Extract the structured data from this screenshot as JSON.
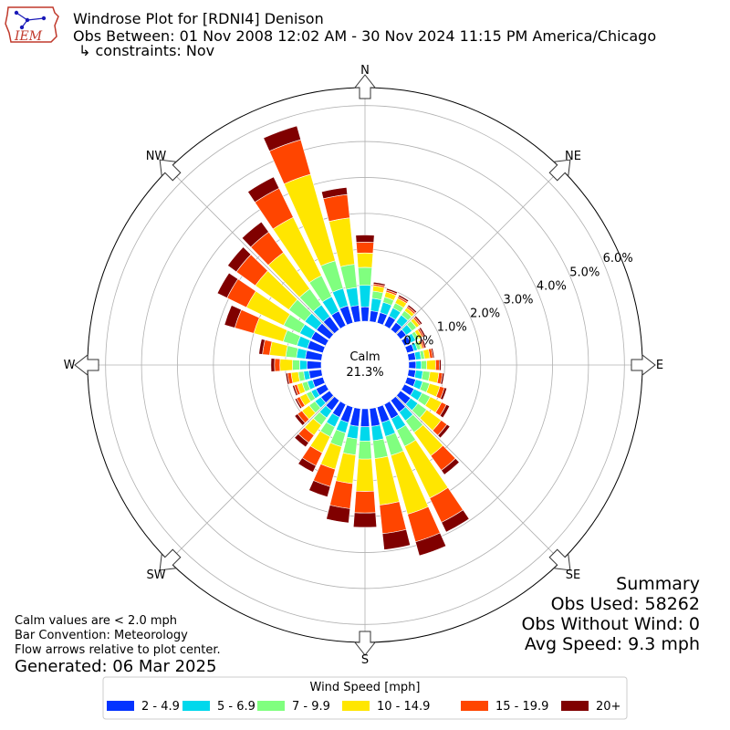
{
  "header": {
    "title": "Windrose Plot for [RDNI4] Denison",
    "period": "Obs Between: 01 Nov 2008 12:02 AM - 30 Nov 2024 11:15 PM America/Chicago",
    "constraints": "↳ constraints: Nov",
    "logo_text": "IEM"
  },
  "center": {
    "label": "Calm",
    "value": "21.3%"
  },
  "directions": {
    "n": "N",
    "ne": "NE",
    "e": "E",
    "se": "SE",
    "s": "S",
    "sw": "SW",
    "w": "W",
    "nw": "NW"
  },
  "radial_ticks": [
    "0.0%",
    "1.0%",
    "2.0%",
    "3.0%",
    "4.0%",
    "5.0%",
    "6.0%"
  ],
  "summary": {
    "heading": "Summary",
    "obs_used": "Obs Used: 58262",
    "obs_without_wind": "Obs Without Wind: 0",
    "avg_speed": "Avg Speed: 9.3 mph"
  },
  "notes": {
    "calm": "Calm values are < 2.0 mph",
    "convention": "Bar Convention: Meteorology",
    "flow": "Flow arrows relative to plot center.",
    "generated": "Generated: 06 Mar 2025"
  },
  "legend": {
    "title": "Wind Speed [mph]",
    "items": [
      {
        "label": "2 - 4.9",
        "color": "#0433ff"
      },
      {
        "label": "5 - 6.9",
        "color": "#00d8ec"
      },
      {
        "label": "7 - 9.9",
        "color": "#80ff7f"
      },
      {
        "label": "10 - 14.9",
        "color": "#ffe600"
      },
      {
        "label": "15 - 19.9",
        "color": "#ff4500"
      },
      {
        "label": "20+",
        "color": "#800000"
      }
    ]
  },
  "chart_data": {
    "type": "windrose",
    "radial_unit": "percent",
    "rmax": 6.5,
    "calm_percent": 21.3,
    "bin_count": 36,
    "bin_width_deg": 10,
    "direction_convention": "meteorology",
    "speed_bins": [
      "2 - 4.9",
      "5 - 6.9",
      "7 - 9.9",
      "10 - 14.9",
      "15 - 19.9",
      "20+"
    ],
    "directions_deg": [
      0,
      10,
      20,
      30,
      40,
      50,
      60,
      70,
      80,
      90,
      100,
      110,
      120,
      130,
      140,
      150,
      160,
      170,
      180,
      190,
      200,
      210,
      220,
      230,
      240,
      250,
      260,
      270,
      280,
      290,
      300,
      310,
      320,
      330,
      340,
      350
    ],
    "cumulative_percent": [
      [
        0.4,
        1.0,
        1.5,
        1.9,
        2.2,
        2.4
      ],
      [
        0.3,
        0.65,
        0.85,
        1.0,
        1.05,
        1.1
      ],
      [
        0.3,
        0.6,
        0.75,
        0.9,
        0.95,
        1.0
      ],
      [
        0.3,
        0.55,
        0.7,
        0.85,
        0.9,
        0.95
      ],
      [
        0.25,
        0.5,
        0.65,
        0.75,
        0.8,
        0.85
      ],
      [
        0.2,
        0.4,
        0.55,
        0.65,
        0.7,
        0.75
      ],
      [
        0.2,
        0.35,
        0.45,
        0.55,
        0.6,
        0.65
      ],
      [
        0.2,
        0.3,
        0.4,
        0.45,
        0.5,
        0.55
      ],
      [
        0.2,
        0.35,
        0.45,
        0.6,
        0.68,
        0.72
      ],
      [
        0.2,
        0.35,
        0.5,
        0.75,
        0.85,
        0.9
      ],
      [
        0.2,
        0.4,
        0.6,
        0.85,
        0.95,
        1.0
      ],
      [
        0.25,
        0.45,
        0.65,
        0.95,
        1.08,
        1.15
      ],
      [
        0.3,
        0.55,
        0.8,
        1.15,
        1.3,
        1.4
      ],
      [
        0.35,
        0.6,
        0.9,
        1.4,
        1.6,
        1.7
      ],
      [
        0.4,
        0.7,
        1.1,
        1.9,
        2.4,
        2.55
      ],
      [
        0.45,
        0.8,
        1.3,
        2.9,
        3.65,
        3.95
      ],
      [
        0.45,
        0.85,
        1.4,
        3.1,
        3.9,
        4.3
      ],
      [
        0.5,
        0.9,
        1.4,
        2.7,
        3.5,
        3.95
      ],
      [
        0.5,
        0.9,
        1.4,
        2.3,
        2.9,
        3.3
      ],
      [
        0.5,
        0.85,
        1.3,
        2.1,
        2.8,
        3.2
      ],
      [
        0.45,
        0.75,
        1.15,
        1.8,
        2.3,
        2.6
      ],
      [
        0.4,
        0.7,
        1.0,
        1.5,
        1.9,
        2.1
      ],
      [
        0.35,
        0.6,
        0.85,
        1.2,
        1.45,
        1.6
      ],
      [
        0.3,
        0.5,
        0.7,
        0.95,
        1.1,
        1.2
      ],
      [
        0.3,
        0.45,
        0.6,
        0.8,
        0.9,
        0.95
      ],
      [
        0.3,
        0.45,
        0.6,
        0.75,
        0.83,
        0.88
      ],
      [
        0.35,
        0.5,
        0.65,
        0.85,
        0.95,
        1.0
      ],
      [
        0.4,
        0.6,
        0.8,
        1.15,
        1.3,
        1.4
      ],
      [
        0.45,
        0.7,
        1.0,
        1.45,
        1.65,
        1.75
      ],
      [
        0.45,
        0.75,
        1.15,
        2.0,
        2.55,
        2.85
      ],
      [
        0.45,
        0.8,
        1.3,
        2.45,
        3.05,
        3.35
      ],
      [
        0.45,
        0.85,
        1.4,
        2.55,
        3.2,
        3.5
      ],
      [
        0.45,
        0.85,
        1.4,
        2.65,
        3.35,
        3.7
      ],
      [
        0.45,
        0.9,
        1.55,
        3.35,
        4.25,
        4.6
      ],
      [
        0.5,
        1.0,
        1.8,
        4.3,
        5.3,
        5.7
      ],
      [
        0.45,
        0.95,
        1.6,
        2.9,
        3.55,
        3.75
      ]
    ]
  }
}
